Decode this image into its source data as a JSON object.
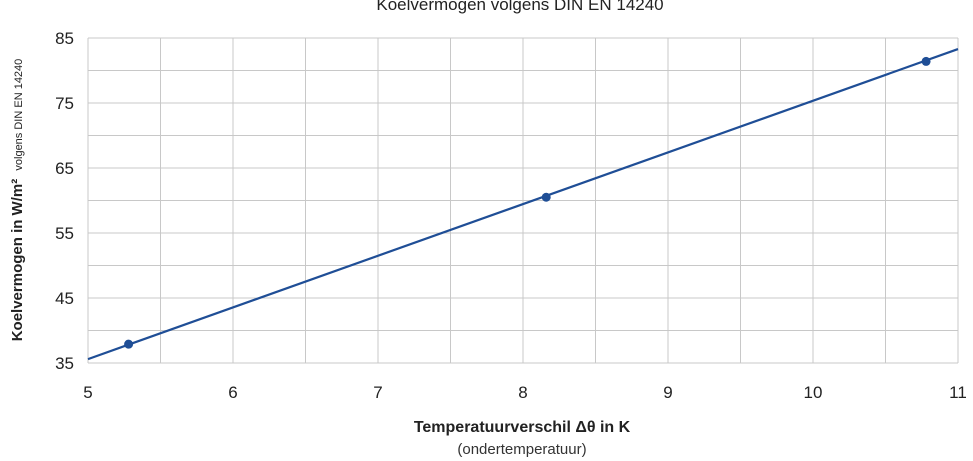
{
  "chart_data": {
    "type": "line",
    "title": "Koelvermogen volgens DIN EN 14240",
    "xlabel": "Temperatuurverschil Δθ in K",
    "xlabel_sub": "(ondertemperatuur)",
    "ylabel": "Koelvermogen in W/m²",
    "ylabel_sub": "volgens DIN EN 14240",
    "xlim": [
      5,
      11
    ],
    "ylim": [
      35,
      85
    ],
    "x_ticks": [
      "5",
      "6",
      "7",
      "8",
      "9",
      "10",
      "11"
    ],
    "y_ticks": [
      "35",
      "45",
      "55",
      "65",
      "75",
      "85"
    ],
    "grid": true,
    "series": [
      {
        "line_x": [
          5,
          11
        ],
        "line_y": [
          35.6,
          83.3
        ],
        "points_x": [
          5.28,
          8.16,
          10.78
        ],
        "points_y": [
          37.9,
          60.5,
          81.4
        ]
      }
    ],
    "line_color": "#1f4e96",
    "grid_color": "#c8c8c8"
  }
}
